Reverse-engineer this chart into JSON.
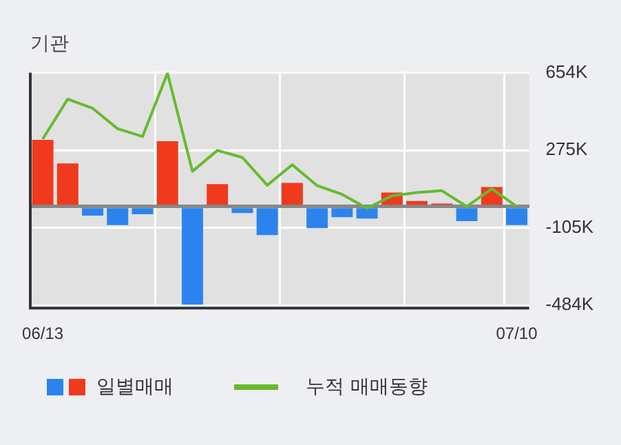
{
  "chart_data": {
    "type": "bar",
    "title": "기관",
    "categories": [
      "06/13",
      null,
      null,
      null,
      null,
      null,
      null,
      null,
      null,
      null,
      null,
      null,
      null,
      null,
      null,
      null,
      null,
      null,
      null,
      "07/10"
    ],
    "series": [
      {
        "name": "일별매매",
        "colors": [
          "#f03a1e",
          "#f03a1e",
          "#2b84ee",
          "#2b84ee",
          "#2b84ee",
          "#f03a1e",
          "#2b84ee",
          "#f03a1e",
          "#2b84ee",
          "#2b84ee",
          "#f03a1e",
          "#2b84ee",
          "#2b84ee",
          "#2b84ee",
          "#f03a1e",
          "#f03a1e",
          "#f03a1e",
          "#2b84ee",
          "#f03a1e",
          "#2b84ee"
        ],
        "values": [
          326000,
          210000,
          -45000,
          -91000,
          -38000,
          319000,
          -480000,
          109000,
          -32000,
          -140000,
          115000,
          -106000,
          -52000,
          -59000,
          68000,
          27000,
          14000,
          -72000,
          95000,
          -91000
        ]
      },
      {
        "name": "누적 매매동향",
        "type": "line",
        "color": "#66bb2e",
        "values": [
          330000,
          525000,
          480000,
          380000,
          342000,
          652000,
          172000,
          274000,
          240000,
          104000,
          204000,
          102000,
          59000,
          -9000,
          52000,
          68000,
          77000,
          0,
          86000,
          0
        ]
      }
    ],
    "ylim": [
      -497000,
      654000
    ],
    "yticks": [
      {
        "value": 654000,
        "label": "654K"
      },
      {
        "value": 275000,
        "label": "275K"
      },
      {
        "value": -105000,
        "label": "-105K"
      },
      {
        "value": -484000,
        "label": "-484K"
      }
    ],
    "grid": true,
    "legend": "bottom",
    "marker": "none"
  }
}
